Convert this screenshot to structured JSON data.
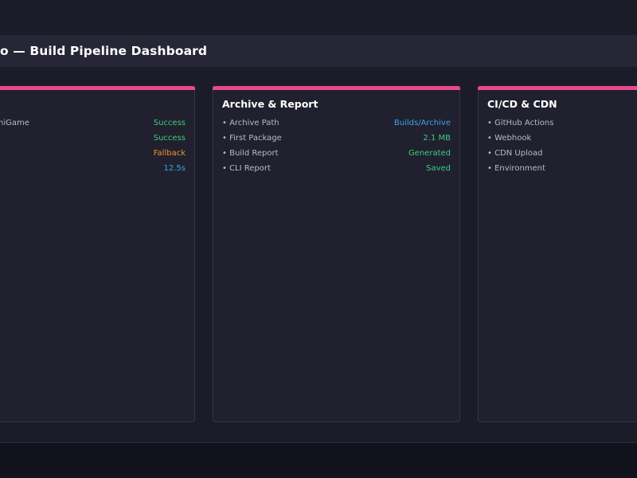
{
  "header": {
    "title": "o — Build Pipeline Dashboard"
  },
  "panels": [
    {
      "title": "",
      "rows": [
        {
          "label": "niGame",
          "value": "Success",
          "status": "success"
        },
        {
          "label": "",
          "value": "Success",
          "status": "success"
        },
        {
          "label": "",
          "value": "Fallback",
          "status": "warning"
        },
        {
          "label": "",
          "value": "12.5s",
          "status": "info"
        }
      ]
    },
    {
      "title": "Archive & Report",
      "rows": [
        {
          "label": "Archive Path",
          "value": "Builds/Archive",
          "status": "info"
        },
        {
          "label": "First Package",
          "value": "2.1 MB",
          "status": "success"
        },
        {
          "label": "Build Report",
          "value": "Generated",
          "status": "success"
        },
        {
          "label": "CLI Report",
          "value": "Saved",
          "status": "success"
        }
      ]
    },
    {
      "title": "CI/CD & CDN",
      "rows": [
        {
          "label": "GitHub Actions",
          "value": "",
          "status": ""
        },
        {
          "label": "Webhook",
          "value": "",
          "status": ""
        },
        {
          "label": "CDN Upload",
          "value": "",
          "status": ""
        },
        {
          "label": "Environment",
          "value": "",
          "status": ""
        }
      ]
    }
  ],
  "colors": {
    "accent": "#e84a8c",
    "success": "#3ecf7a",
    "warning": "#f0932a",
    "info": "#3aa6e6"
  }
}
